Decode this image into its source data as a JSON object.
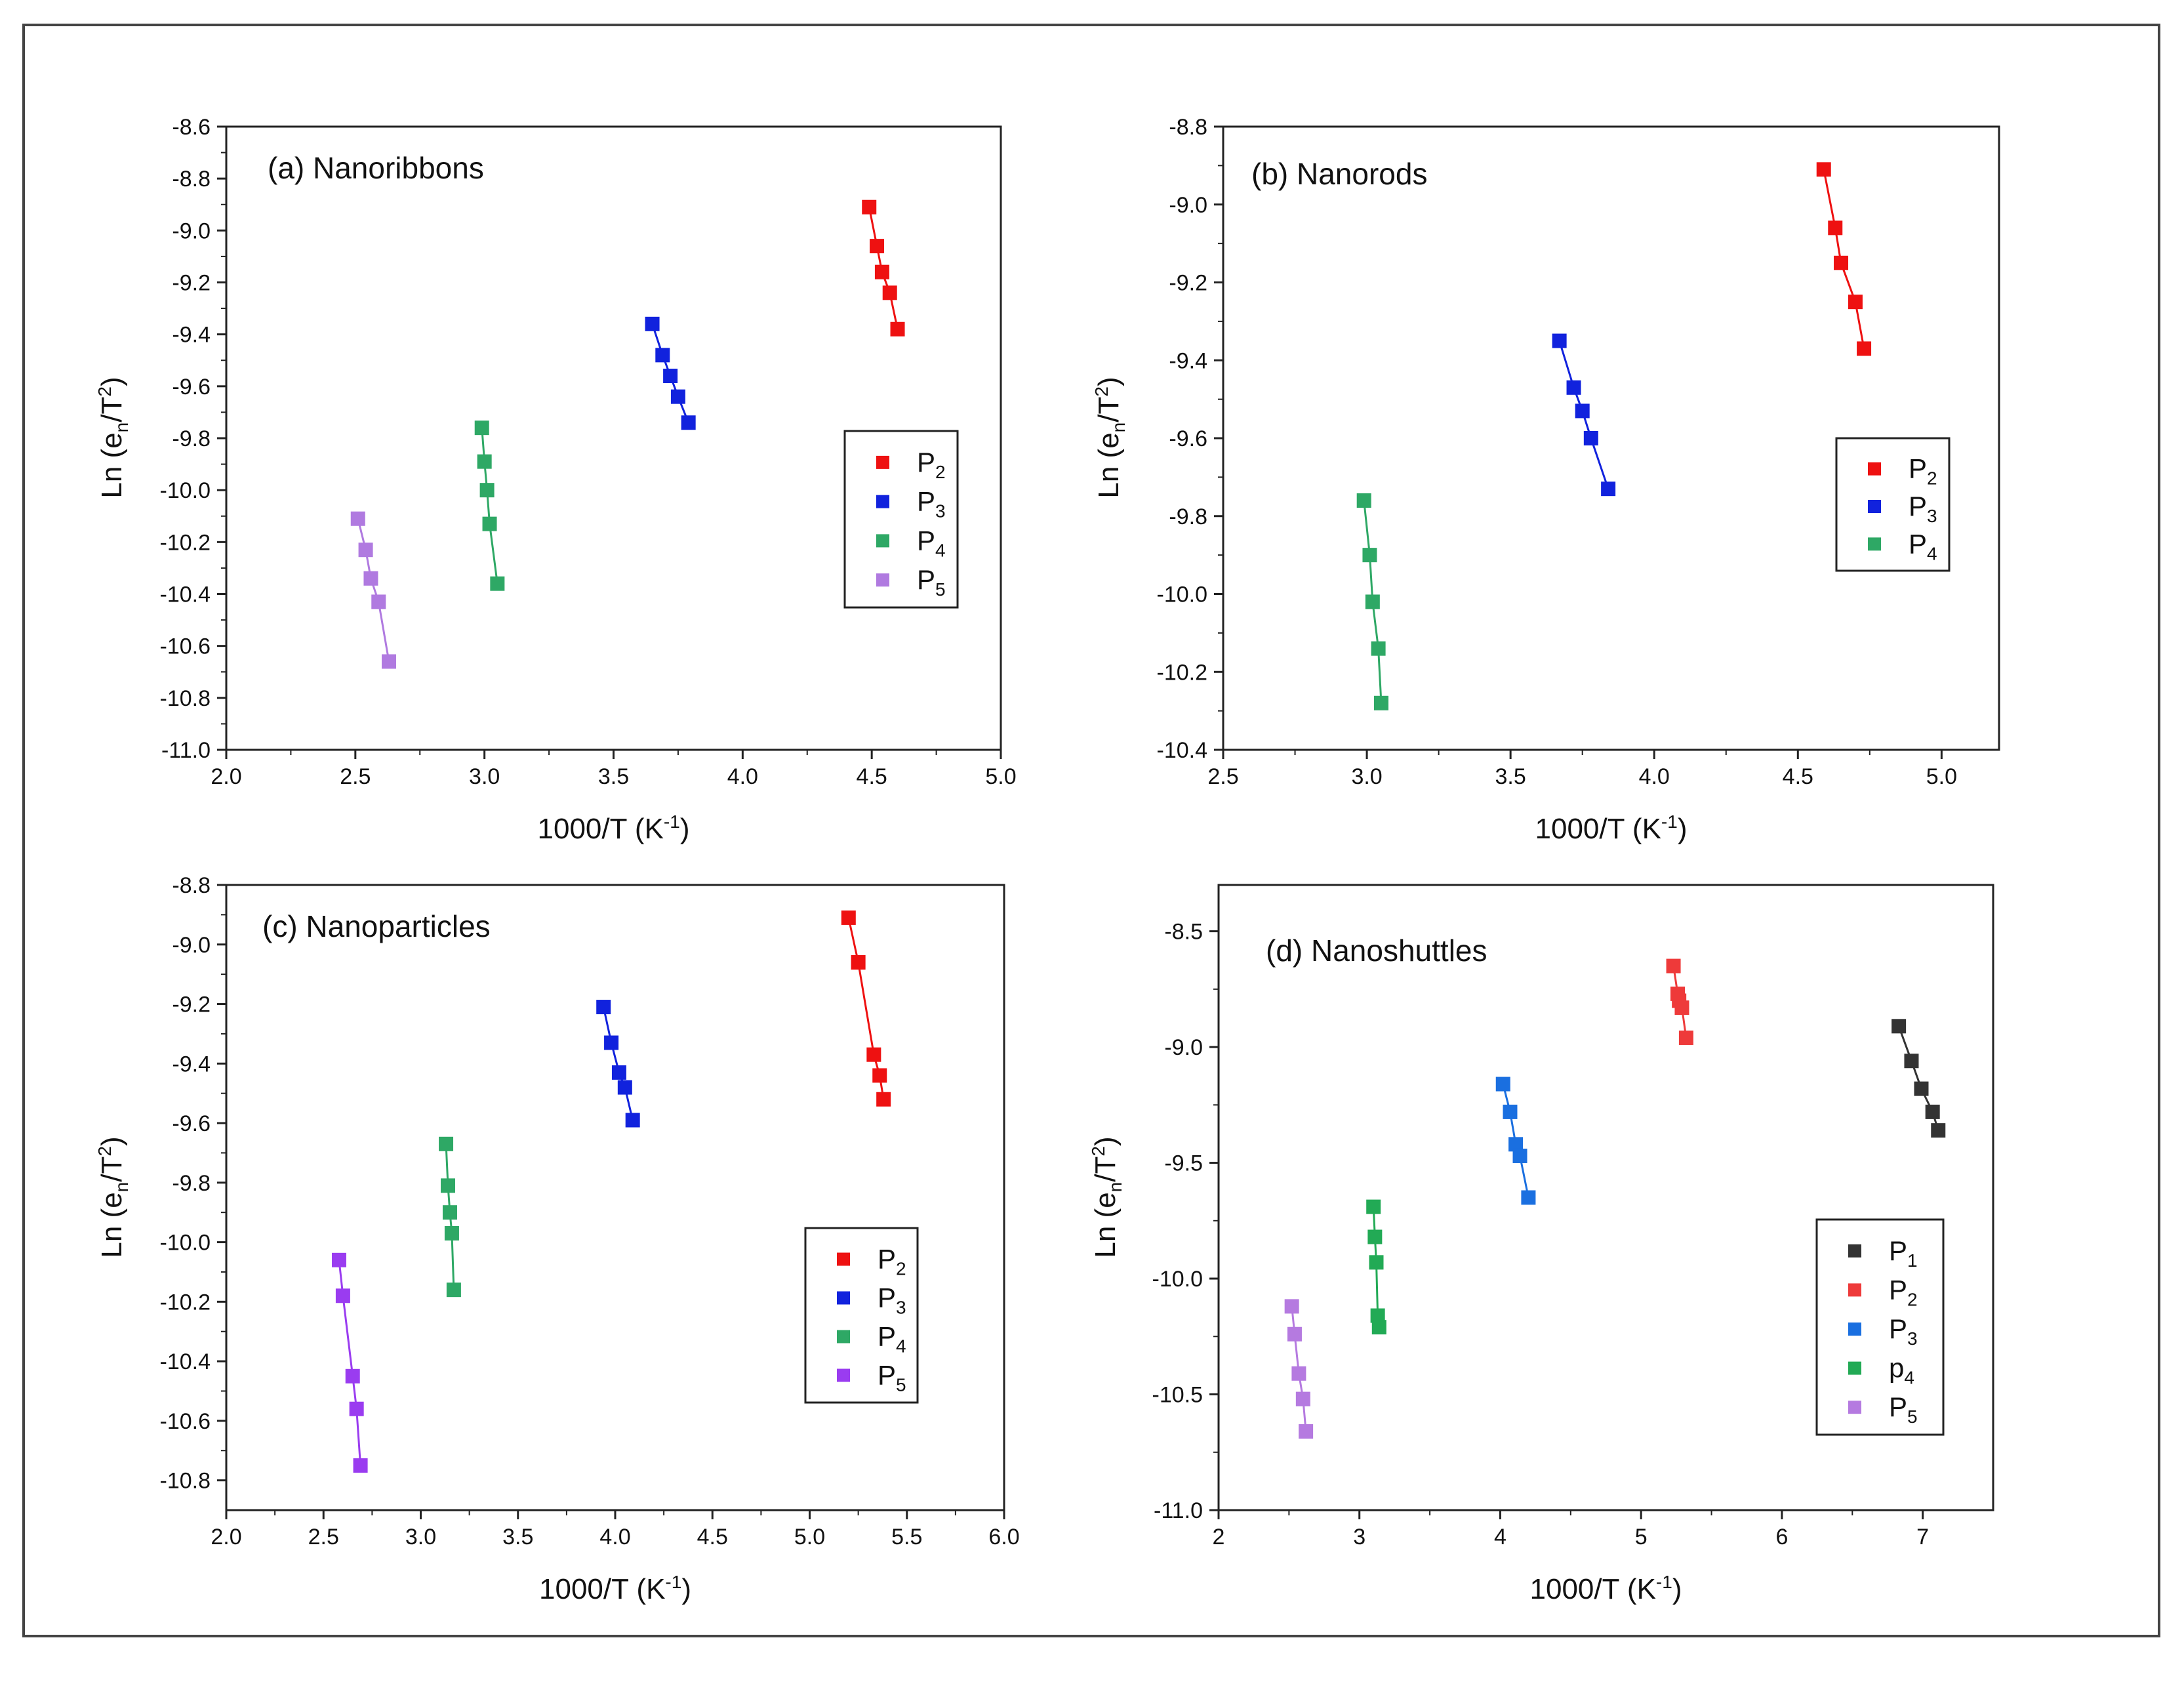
{
  "figure": {
    "ylabel_main": "Ln (e",
    "ylabel_sub": "n",
    "ylabel_mid": "/T",
    "ylabel_sup": "2",
    "ylabel_end": ")"
  },
  "chart_data": [
    {
      "type": "line",
      "title": "(a) Nanoribbons",
      "xlabel": "1000/T (K",
      "xlabel_sup": "-1",
      "xlabel_end": ")",
      "ylabel": "Ln (en/T2)",
      "xlim": [
        2.0,
        5.0
      ],
      "ylim": [
        -11.0,
        -8.6
      ],
      "xticks": [
        2.0,
        2.5,
        3.0,
        3.5,
        4.0,
        4.5,
        5.0
      ],
      "xtick_labels": [
        "2.0",
        "2.5",
        "3.0",
        "3.5",
        "4.0",
        "4.5",
        "5.0"
      ],
      "yticks": [
        -11.0,
        -10.8,
        -10.6,
        -10.4,
        -10.2,
        -10.0,
        -9.8,
        -9.6,
        -9.4,
        -9.2,
        -9.0,
        -8.8,
        -8.6
      ],
      "ytick_labels": [
        "-11.0",
        "-10.8",
        "-10.6",
        "-10.4",
        "-10.2",
        "-10.0",
        "-9.8",
        "-9.6",
        "-9.4",
        "-9.2",
        "-9.0",
        "-8.8",
        "-8.6"
      ],
      "legend_position": "right",
      "series": [
        {
          "name": "P",
          "sub": "2",
          "color": "#ee1111",
          "x": [
            4.49,
            4.52,
            4.54,
            4.57,
            4.6
          ],
          "y": [
            -8.91,
            -9.06,
            -9.16,
            -9.24,
            -9.38
          ]
        },
        {
          "name": "P",
          "sub": "3",
          "color": "#1122dd",
          "x": [
            3.65,
            3.69,
            3.72,
            3.75,
            3.79
          ],
          "y": [
            -9.36,
            -9.48,
            -9.56,
            -9.64,
            -9.74
          ]
        },
        {
          "name": "P",
          "sub": "4",
          "color": "#2ea865",
          "x": [
            2.99,
            3.0,
            3.01,
            3.02,
            3.05
          ],
          "y": [
            -9.76,
            -9.89,
            -10.0,
            -10.13,
            -10.36
          ]
        },
        {
          "name": "P",
          "sub": "5",
          "color": "#b07ae0",
          "x": [
            2.51,
            2.54,
            2.56,
            2.59,
            2.63
          ],
          "y": [
            -10.11,
            -10.23,
            -10.34,
            -10.43,
            -10.66
          ]
        }
      ]
    },
    {
      "type": "line",
      "title": "(b) Nanorods",
      "xlabel": "1000/T (K",
      "xlabel_sup": "-1",
      "xlabel_end": ")",
      "ylabel": "Ln (en/T2)",
      "xlim": [
        2.5,
        5.2
      ],
      "ylim": [
        -10.4,
        -8.8
      ],
      "xticks": [
        2.5,
        3.0,
        3.5,
        4.0,
        4.5,
        5.0
      ],
      "xtick_labels": [
        "2.5",
        "3.0",
        "3.5",
        "4.0",
        "4.5",
        "5.0"
      ],
      "yticks": [
        -10.4,
        -10.2,
        -10.0,
        -9.8,
        -9.6,
        -9.4,
        -9.2,
        -9.0,
        -8.8
      ],
      "ytick_labels": [
        "-10.4",
        "-10.2",
        "-10.0",
        "-9.8",
        "-9.6",
        "-9.4",
        "-9.2",
        "-9.0",
        "-8.8"
      ],
      "legend_position": "right",
      "series": [
        {
          "name": "P",
          "sub": "2",
          "color": "#ee1111",
          "x": [
            4.59,
            4.63,
            4.65,
            4.7,
            4.73
          ],
          "y": [
            -8.91,
            -9.06,
            -9.15,
            -9.25,
            -9.37
          ]
        },
        {
          "name": "P",
          "sub": "3",
          "color": "#1122dd",
          "x": [
            3.67,
            3.72,
            3.75,
            3.78,
            3.84
          ],
          "y": [
            -9.35,
            -9.47,
            -9.53,
            -9.6,
            -9.73
          ]
        },
        {
          "name": "P",
          "sub": "4",
          "color": "#2ea865",
          "x": [
            2.99,
            3.01,
            3.02,
            3.04,
            3.05
          ],
          "y": [
            -9.76,
            -9.9,
            -10.02,
            -10.14,
            -10.28
          ]
        }
      ]
    },
    {
      "type": "line",
      "title": "(c) Nanoparticles",
      "xlabel": "1000/T (K",
      "xlabel_sup": "-1",
      "xlabel_end": ")",
      "ylabel": "Ln (en/T2)",
      "xlim": [
        2.0,
        6.0
      ],
      "ylim": [
        -10.9,
        -8.8
      ],
      "xticks": [
        2.0,
        2.5,
        3.0,
        3.5,
        4.0,
        4.5,
        5.0,
        5.5,
        6.0
      ],
      "xtick_labels": [
        "2.0",
        "2.5",
        "3.0",
        "3.5",
        "4.0",
        "4.5",
        "5.0",
        "5.5",
        "6.0"
      ],
      "yticks": [
        -10.8,
        -10.6,
        -10.4,
        -10.2,
        -10.0,
        -9.8,
        -9.6,
        -9.4,
        -9.2,
        -9.0,
        -8.8
      ],
      "ytick_labels": [
        "-10.8",
        "-10.6",
        "-10.4",
        "-10.2",
        "-10.0",
        "-9.8",
        "-9.6",
        "-9.4",
        "-9.2",
        "-9.0",
        "-8.8"
      ],
      "legend_position": "right",
      "series": [
        {
          "name": "P",
          "sub": "2",
          "color": "#ee1111",
          "x": [
            5.2,
            5.25,
            5.33,
            5.36,
            5.38
          ],
          "y": [
            -8.91,
            -9.06,
            -9.37,
            -9.44,
            -9.52
          ]
        },
        {
          "name": "P",
          "sub": "3",
          "color": "#1122dd",
          "x": [
            3.94,
            3.98,
            4.02,
            4.05,
            4.09
          ],
          "y": [
            -9.21,
            -9.33,
            -9.43,
            -9.48,
            -9.59
          ]
        },
        {
          "name": "P",
          "sub": "4",
          "color": "#2ea865",
          "x": [
            3.13,
            3.14,
            3.15,
            3.16,
            3.17
          ],
          "y": [
            -9.67,
            -9.81,
            -9.9,
            -9.97,
            -10.16
          ]
        },
        {
          "name": "P",
          "sub": "5",
          "color": "#9a3cf0",
          "x": [
            2.58,
            2.6,
            2.65,
            2.67,
            2.69
          ],
          "y": [
            -10.06,
            -10.18,
            -10.45,
            -10.56,
            -10.75
          ]
        }
      ]
    },
    {
      "type": "line",
      "title": "(d) Nanoshuttles",
      "xlabel": "1000/T (K",
      "xlabel_sup": "-1",
      "xlabel_end": ")",
      "ylabel": "Ln (en/T2)",
      "xlim": [
        2.0,
        7.5
      ],
      "ylim": [
        -11.0,
        -8.3
      ],
      "xticks": [
        2,
        3,
        4,
        5,
        6,
        7
      ],
      "xtick_labels": [
        "2",
        "3",
        "4",
        "5",
        "6",
        "7"
      ],
      "yticks": [
        -11.0,
        -10.5,
        -10.0,
        -9.5,
        -9.0,
        -8.5
      ],
      "ytick_labels": [
        "-11.0",
        "-10.5",
        "-10.0",
        "-9.5",
        "-9.0",
        "-8.5"
      ],
      "legend_position": "right",
      "series": [
        {
          "name": "P",
          "sub": "1",
          "color": "#333333",
          "x": [
            6.83,
            6.92,
            6.99,
            7.07,
            7.11
          ],
          "y": [
            -8.91,
            -9.06,
            -9.18,
            -9.28,
            -9.36
          ]
        },
        {
          "name": "P",
          "sub": "2",
          "color": "#ee3a3a",
          "x": [
            5.23,
            5.26,
            5.27,
            5.29,
            5.32
          ],
          "y": [
            -8.65,
            -8.77,
            -8.8,
            -8.83,
            -8.96
          ]
        },
        {
          "name": "P",
          "sub": "3",
          "color": "#1a6fe0",
          "x": [
            4.02,
            4.07,
            4.11,
            4.14,
            4.2
          ],
          "y": [
            -9.16,
            -9.28,
            -9.42,
            -9.47,
            -9.65
          ]
        },
        {
          "name": "p",
          "sub": "4",
          "color": "#22aa55",
          "x": [
            3.1,
            3.11,
            3.12,
            3.13,
            3.14
          ],
          "y": [
            -9.69,
            -9.82,
            -9.93,
            -10.16,
            -10.21
          ]
        },
        {
          "name": "P",
          "sub": "5",
          "color": "#b57ae0",
          "x": [
            2.52,
            2.54,
            2.57,
            2.6,
            2.62
          ],
          "y": [
            -10.12,
            -10.24,
            -10.41,
            -10.52,
            -10.66
          ]
        }
      ]
    }
  ]
}
